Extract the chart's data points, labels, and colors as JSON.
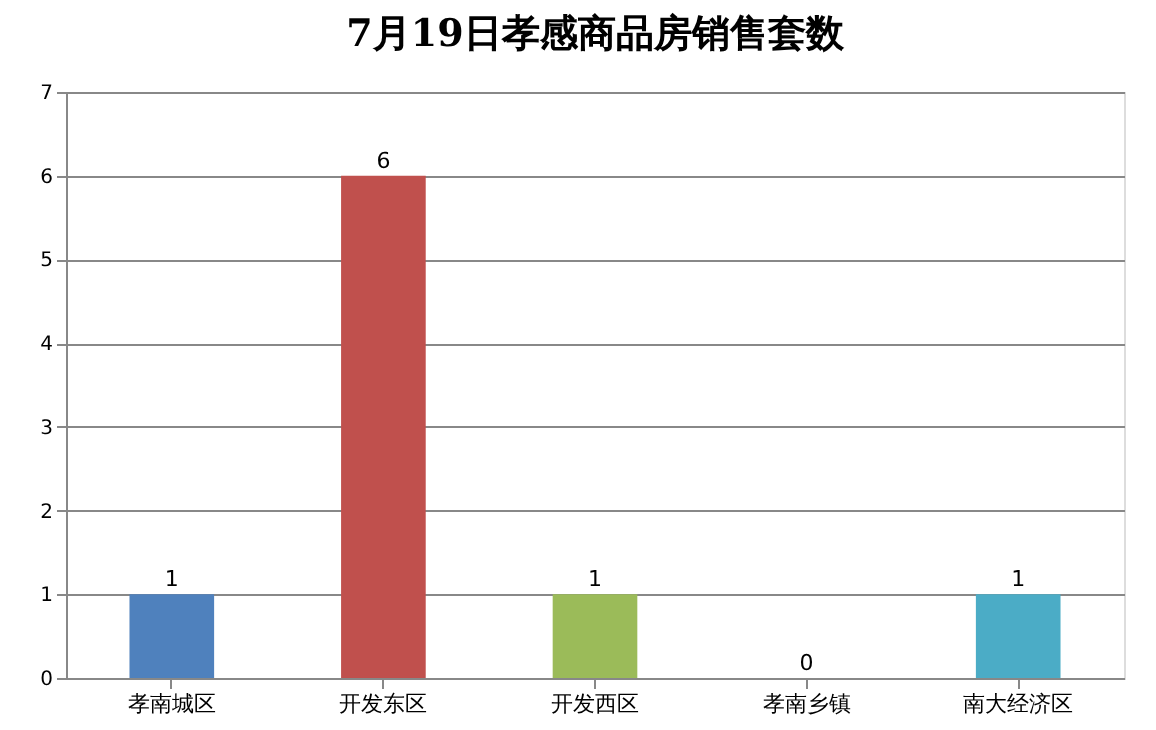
{
  "chart_data": {
    "type": "bar",
    "title": "7月19日孝感商品房销售套数",
    "categories": [
      "孝南城区",
      "开发东区",
      "开发西区",
      "孝南乡镇",
      "南大经济区"
    ],
    "values": [
      1,
      6,
      1,
      0,
      1
    ],
    "colors": [
      "#4f81bd",
      "#c0504d",
      "#9bbb59",
      "#8064a2",
      "#4bacc6"
    ],
    "ylim": [
      0,
      7
    ],
    "yticks": [
      0,
      1,
      2,
      3,
      4,
      5,
      6,
      7
    ],
    "grid": "y",
    "data_labels": true,
    "legend": false
  }
}
